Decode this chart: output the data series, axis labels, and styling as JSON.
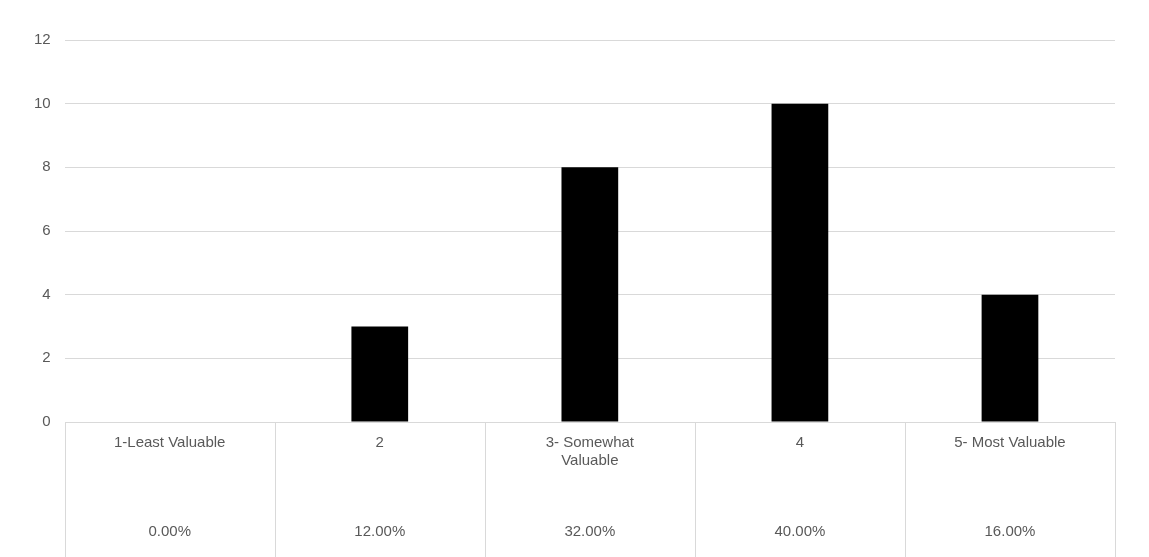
{
  "chart_data": {
    "type": "bar",
    "categories": [
      "1-Least Valuable",
      "2",
      "3- Somewhat Valuable",
      "4",
      "5- Most Valuable"
    ],
    "values": [
      0,
      3,
      8,
      10,
      4
    ],
    "annotations": [
      "0.00%",
      "12.00%",
      "32.00%",
      "40.00%",
      "16.00%"
    ],
    "color": "#000000",
    "ylim": [
      0,
      12
    ],
    "yticks": [
      0,
      2,
      4,
      6,
      8,
      10,
      12
    ],
    "grid": "y",
    "legend": false
  }
}
